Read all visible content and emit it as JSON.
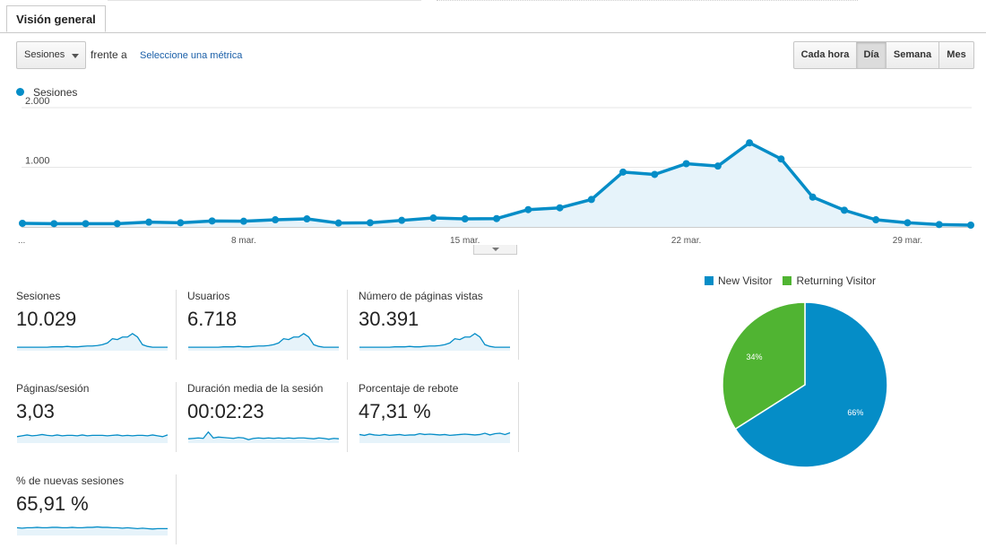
{
  "tabs": [
    {
      "label": "Visión general"
    }
  ],
  "controls": {
    "metric_select": "Sesiones",
    "vs_label": "frente a",
    "select_metric_link": "Seleccione una métrica",
    "periods": [
      "Cada hora",
      "Día",
      "Semana",
      "Mes"
    ],
    "active_period": "Día"
  },
  "colors": {
    "series": "#058dc7",
    "area": "#e6f3fa",
    "new_visitor": "#058dc7",
    "returning_visitor": "#50b432"
  },
  "chart_data": [
    {
      "type": "line",
      "series": [
        {
          "name": "Sesiones",
          "values": [
            60,
            55,
            55,
            55,
            80,
            70,
            100,
            95,
            120,
            135,
            65,
            70,
            110,
            150,
            135,
            140,
            290,
            320,
            460,
            920,
            880,
            1060,
            1020,
            1410,
            1140,
            500,
            280,
            120,
            70,
            40,
            30
          ]
        }
      ],
      "ylim": [
        0,
        2000
      ],
      "yticks": [
        "2.000",
        "1.000"
      ],
      "ytick_values": [
        2000,
        1000
      ],
      "xtick_labels": [
        "...",
        "8 mar.",
        "15 mar.",
        "22 mar.",
        "29 mar."
      ],
      "xtick_index": [
        0,
        7,
        14,
        21,
        28
      ],
      "grid": true
    },
    {
      "type": "pie",
      "categories": [
        "New Visitor",
        "Returning Visitor"
      ],
      "values": [
        66,
        34
      ],
      "labels": [
        "66%",
        "34%"
      ]
    }
  ],
  "metrics": [
    {
      "name": "Sesiones",
      "value": "10.029",
      "spark": [
        6,
        6,
        6,
        6,
        6,
        6,
        6,
        7,
        7,
        7,
        8,
        7,
        7,
        8,
        9,
        9,
        10,
        12,
        16,
        26,
        24,
        30,
        30,
        38,
        30,
        12,
        8,
        6,
        6,
        6,
        6
      ]
    },
    {
      "name": "Usuarios",
      "value": "6.718",
      "spark": [
        6,
        6,
        6,
        6,
        6,
        6,
        6,
        7,
        7,
        7,
        8,
        7,
        7,
        8,
        9,
        9,
        10,
        12,
        16,
        26,
        24,
        30,
        30,
        38,
        30,
        12,
        8,
        6,
        6,
        6,
        6
      ]
    },
    {
      "name": "Número de páginas vistas",
      "value": "30.391",
      "spark": [
        6,
        6,
        6,
        6,
        6,
        6,
        6,
        7,
        7,
        7,
        8,
        7,
        7,
        8,
        9,
        9,
        10,
        12,
        16,
        26,
        24,
        30,
        30,
        38,
        30,
        12,
        8,
        6,
        6,
        6,
        6
      ]
    },
    {
      "name": "Páginas/sesión",
      "value": "3,03",
      "spark": [
        13,
        15,
        17,
        15,
        16,
        18,
        16,
        15,
        17,
        15,
        16,
        16,
        15,
        17,
        15,
        16,
        16,
        16,
        15,
        16,
        17,
        15,
        16,
        15,
        16,
        16,
        15,
        17,
        15,
        13,
        17
      ]
    },
    {
      "name": "Duración media de la sesión",
      "value": "00:02:23",
      "spark": [
        8,
        9,
        10,
        9,
        24,
        10,
        12,
        11,
        10,
        9,
        11,
        10,
        6,
        9,
        10,
        9,
        10,
        9,
        10,
        9,
        10,
        9,
        10,
        10,
        9,
        8,
        10,
        9,
        7,
        9,
        8
      ]
    },
    {
      "name": "Porcentaje de rebote",
      "value": "47,31 %",
      "spark": [
        18,
        16,
        19,
        17,
        16,
        18,
        16,
        17,
        18,
        16,
        17,
        17,
        20,
        18,
        19,
        18,
        17,
        18,
        16,
        17,
        18,
        19,
        18,
        17,
        18,
        21,
        17,
        20,
        21,
        18,
        22
      ]
    },
    {
      "name": "% de nuevas sesiones",
      "value": "65,91 %",
      "spark": [
        16,
        15,
        16,
        16,
        17,
        16,
        16,
        17,
        17,
        16,
        16,
        17,
        16,
        16,
        17,
        17,
        18,
        17,
        17,
        16,
        16,
        15,
        16,
        15,
        14,
        15,
        14,
        13,
        14,
        14,
        14
      ]
    }
  ]
}
